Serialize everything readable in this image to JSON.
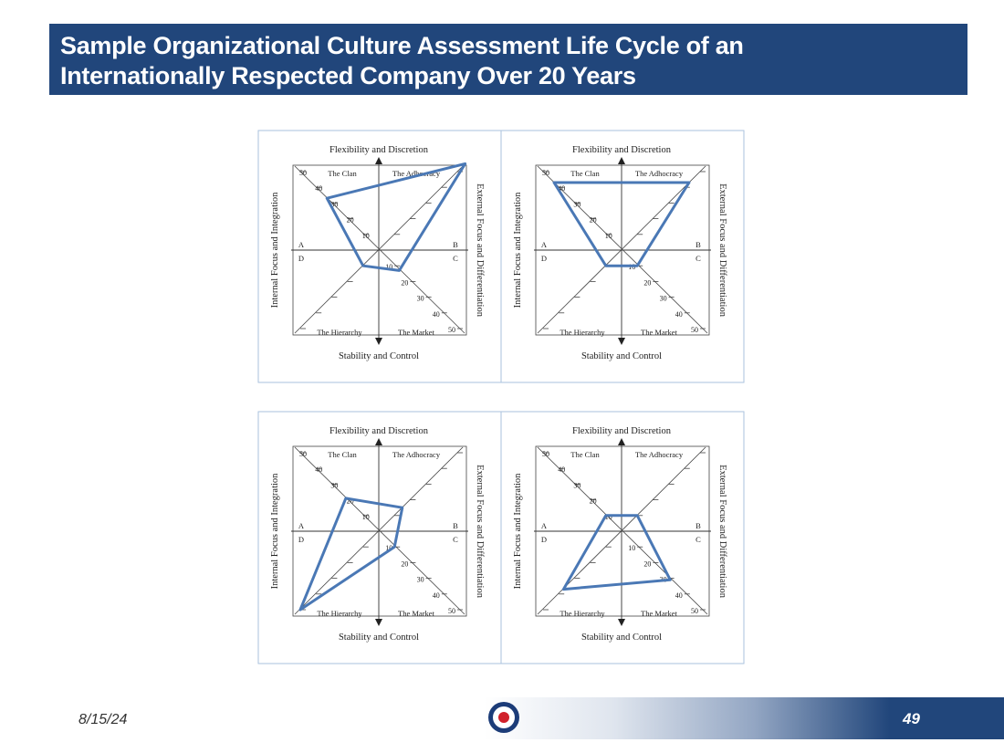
{
  "slide": {
    "title_line1": "Sample Organizational Culture Assessment Life Cycle of an",
    "title_line2": "Internationally Respected Company Over 20 Years",
    "date": "8/15/24",
    "page_number": "49"
  },
  "colors": {
    "title_bar": "#21467b",
    "profile_line": "#4a78b5",
    "panel_border": "#aac2dd"
  },
  "logo": "roundel-icon",
  "diagram": {
    "top_label": "Flexibility and Discretion",
    "bottom_label": "Stability and Control",
    "left_label": "Internal Focus and Integration",
    "right_label": "External Focus and Differentiation",
    "quadrants": [
      "The Clan",
      "The Adhocracy",
      "The Hierarchy",
      "The Market"
    ],
    "letters": [
      "A",
      "B",
      "C",
      "D"
    ],
    "scale_labels": [
      "10",
      "20",
      "30",
      "40",
      "50"
    ]
  },
  "profiles": [
    {
      "clan": 33,
      "adhocracy": 55,
      "market": 13,
      "hierarchy": 10
    },
    {
      "clan": 43,
      "adhocracy": 43,
      "market": 10,
      "hierarchy": 10
    },
    {
      "clan": 21,
      "adhocracy": 15,
      "market": 10,
      "hierarchy": 50
    },
    {
      "clan": 10,
      "adhocracy": 10,
      "market": 31,
      "hierarchy": 37
    }
  ]
}
